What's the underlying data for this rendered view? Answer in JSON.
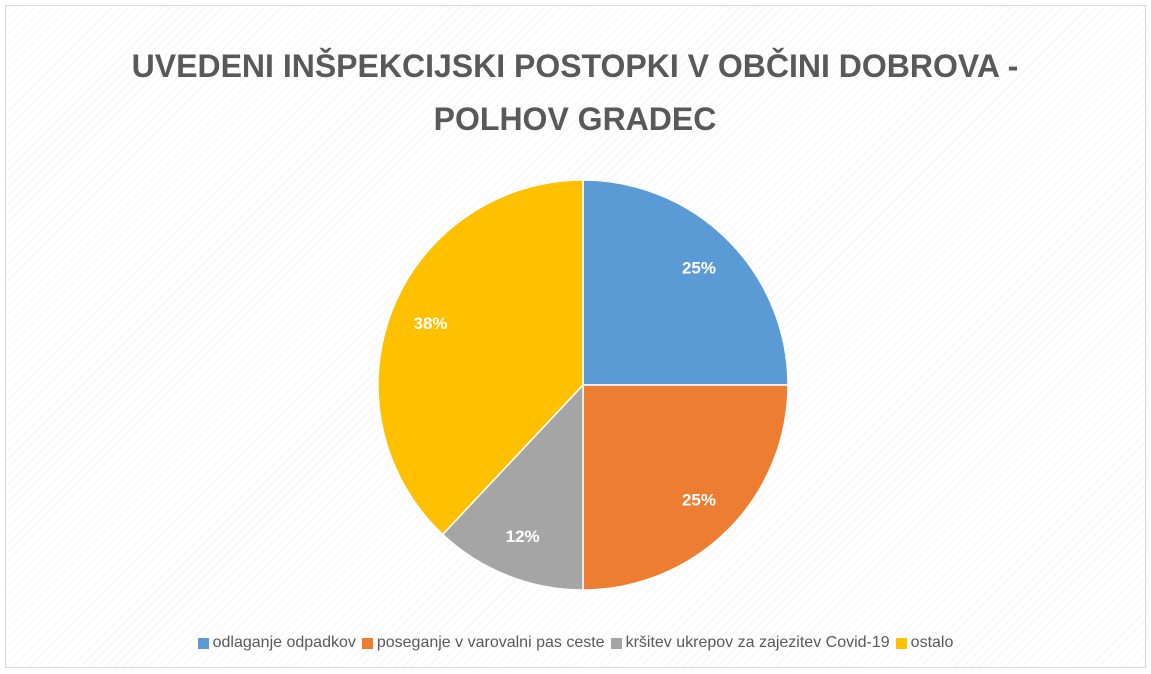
{
  "chart_data": {
    "type": "pie",
    "title": "UVEDENI INŠPEKCIJSKI POSTOPKI V OBČINI DOBROVA - POLHOV GRADEC",
    "categories": [
      "odlaganje odpadkov",
      "poseganje v varovalni pas ceste",
      "kršitev ukrepov za zajezitev Covid-19",
      "ostalo"
    ],
    "values": [
      25,
      25,
      12,
      38
    ],
    "value_labels": [
      "25%",
      "25%",
      "12%",
      "38%"
    ],
    "colors": [
      "#5b9bd5",
      "#ed7d31",
      "#a5a5a5",
      "#ffc000"
    ],
    "legend": "bottom"
  }
}
